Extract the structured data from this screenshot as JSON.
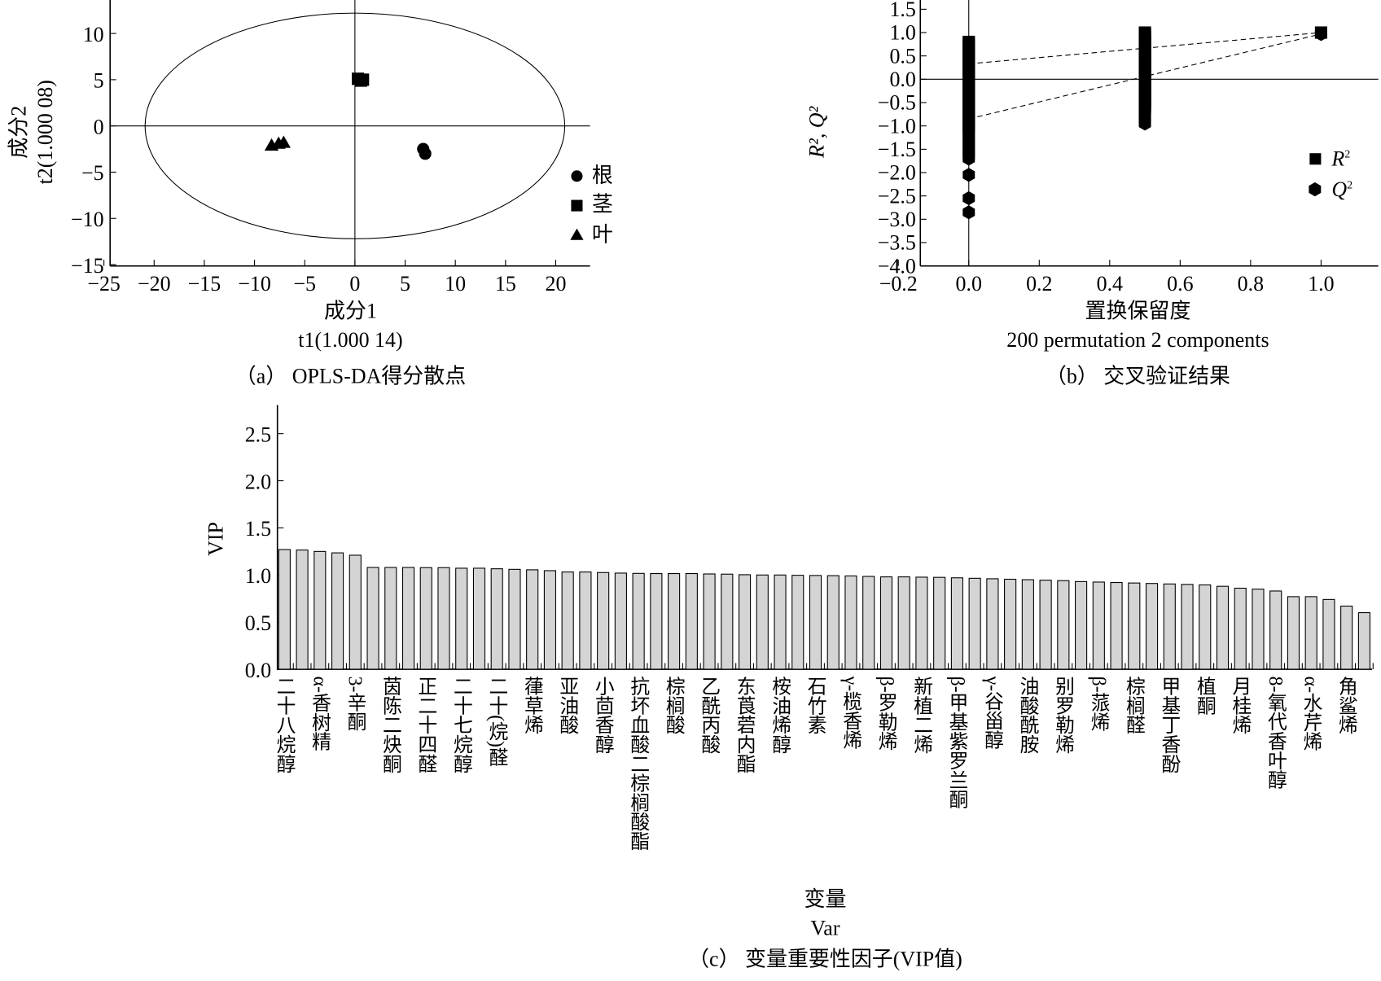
{
  "chart_data": [
    {
      "type": "scatter",
      "title": "（a） OPLS-DA得分散点",
      "xlabel": "成分1",
      "xlabel2": "t1(1.000 14)",
      "ylabel": "成分2",
      "ylabel2": "t2(1.000 08)",
      "xlim": [
        -25,
        23.5
      ],
      "ylim": [
        -15,
        13.5
      ],
      "xticks": [
        -25,
        -20,
        -15,
        -10,
        -5,
        0,
        5,
        10,
        15,
        20
      ],
      "yticks": [
        10,
        5,
        0,
        -5,
        -10,
        -15
      ],
      "ellipse": {
        "cx": 0,
        "cy": 0,
        "rx": 20.9,
        "ry": 12.2
      },
      "legend_position": "right",
      "series": [
        {
          "name": "根",
          "marker": "circle",
          "x": [
            6.8,
            7.0
          ],
          "y": [
            -2.5,
            -3.0
          ]
        },
        {
          "name": "茎",
          "marker": "square",
          "x": [
            0.3,
            0.8,
            0.6
          ],
          "y": [
            5.1,
            5.0,
            4.9
          ]
        },
        {
          "name": "叶",
          "marker": "triangle",
          "x": [
            -8.3,
            -7.6,
            -7.1
          ],
          "y": [
            -2.1,
            -1.9,
            -1.8
          ]
        }
      ]
    },
    {
      "type": "scatter",
      "title": "（b） 交叉验证结果",
      "xlabel": "置换保留度",
      "xlabel2": "200 permutation 2 components",
      "ylabel": "R², Q²",
      "xlim": [
        -0.2,
        1.16
      ],
      "ylim": [
        -4.0,
        1.65
      ],
      "xticks": [
        "−0.2",
        "0.0",
        "0.2",
        "0.4",
        "0.6",
        "0.8",
        "1.0"
      ],
      "xtick_values": [
        -0.2,
        0,
        0.2,
        0.4,
        0.6,
        0.8,
        1.0
      ],
      "yticks": [
        "1.5",
        "1.0",
        "0.5",
        "0.0",
        "−0.5",
        "−1.0",
        "−1.5",
        "−2.0",
        "−2.5",
        "−3.0",
        "−3.5",
        "−4.0"
      ],
      "ytick_values": [
        1.5,
        1.0,
        0.5,
        0,
        -0.5,
        -1.0,
        -1.5,
        -2.0,
        -2.5,
        -3.0,
        -3.5,
        -4.0
      ],
      "legend_position": "right",
      "legend": [
        {
          "name": "R",
          "sup": "2",
          "marker": "square"
        },
        {
          "name": "Q",
          "sup": "2",
          "marker": "hexagon"
        }
      ],
      "columns": [
        {
          "series": "Q2",
          "x": 0.0,
          "y_range": [
            -1.7,
            0.3
          ]
        },
        {
          "series": "R2",
          "x": 0.0,
          "y_range": [
            -1.0,
            0.8
          ]
        },
        {
          "series": "Q2",
          "x": 0.5,
          "y_range": [
            -0.95,
            0.5
          ]
        },
        {
          "series": "R2",
          "x": 0.5,
          "y_range": [
            -0.6,
            1.0
          ]
        }
      ],
      "outliers": [
        {
          "series": "Q2",
          "x": 0.0,
          "y": [
            -2.05,
            -2.55,
            -2.85
          ]
        }
      ],
      "original": [
        {
          "series": "R2",
          "x": 1.0,
          "y": 1.0
        },
        {
          "series": "Q2",
          "x": 1.0,
          "y": 0.97
        }
      ],
      "regression_lines": [
        {
          "series": "R2",
          "intercept": 0.33,
          "end": [
            1.0,
            1.0
          ]
        },
        {
          "series": "Q2",
          "intercept": -0.85,
          "end": [
            1.0,
            0.97
          ]
        }
      ]
    },
    {
      "type": "bar",
      "title": "（c） 变量重要性因子(VIP值)",
      "xlabel": "变量",
      "xlabel2": "Var",
      "ylabel": "VIP",
      "ylim": [
        0,
        2.8
      ],
      "yticks": [
        "0.0",
        "0.5",
        "1.0",
        "1.5",
        "2.0",
        "2.5"
      ],
      "ytick_values": [
        0,
        0.5,
        1.0,
        1.5,
        2.0,
        2.5
      ],
      "bar_color": "#d4d4d4",
      "labels_every": 2,
      "tick_labels": [
        "二十八烷醇",
        "α-香树精",
        "3-辛酮",
        "茵陈二炔酮",
        "正二十四醛",
        "二十七烷醇",
        "二十(烷)醛",
        "葎草烯",
        "亚油酸",
        "小茴香醇",
        "抗坏血酸二棕榈酸酯",
        "棕榈酸",
        "乙酰丙酸",
        "东莨菪内酯",
        "桉油烯醇",
        "石竹素",
        "γ-榄香烯",
        "β-罗勒烯",
        "新植二烯",
        "β-甲基紫罗兰酮",
        "γ-谷甾醇",
        "油酸酰胺",
        "别罗勒烯",
        "β-蒎烯",
        "棕榈醛",
        "甲基丁香酚",
        "植酮",
        "月桂烯",
        "8-氧代香叶醇",
        "α-水芹烯",
        "角鲨烯"
      ],
      "values": [
        1.27,
        1.265,
        1.25,
        1.235,
        1.21,
        1.08,
        1.08,
        1.08,
        1.078,
        1.078,
        1.072,
        1.072,
        1.066,
        1.06,
        1.055,
        1.046,
        1.032,
        1.032,
        1.026,
        1.02,
        1.017,
        1.015,
        1.015,
        1.015,
        1.011,
        1.009,
        1.003,
        1.0,
        1.0,
        0.997,
        0.995,
        0.993,
        0.99,
        0.985,
        0.98,
        0.98,
        0.977,
        0.975,
        0.97,
        0.965,
        0.96,
        0.955,
        0.95,
        0.945,
        0.94,
        0.93,
        0.925,
        0.92,
        0.915,
        0.91,
        0.905,
        0.9,
        0.895,
        0.88,
        0.86,
        0.85,
        0.83,
        0.77,
        0.77,
        0.74,
        0.67,
        0.6
      ]
    }
  ]
}
